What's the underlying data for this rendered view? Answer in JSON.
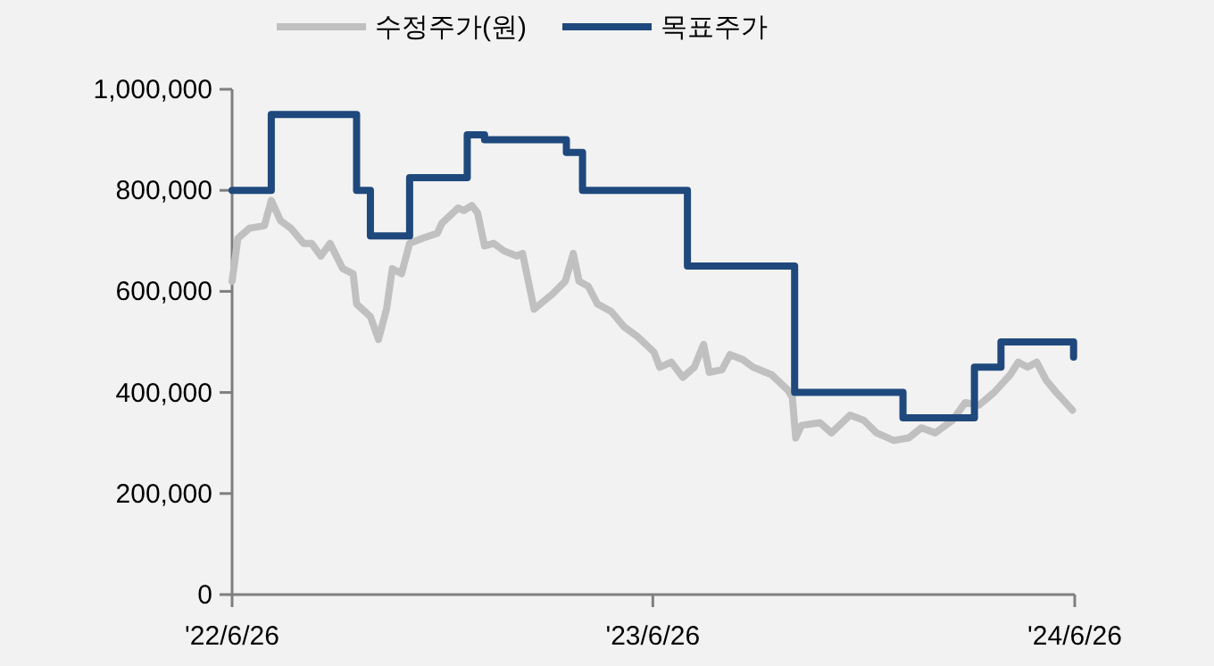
{
  "chart_data": {
    "type": "line",
    "legend": "top",
    "grid": false,
    "xlim": [
      "2022-06-26",
      "2024-06-26"
    ],
    "xticks": [
      {
        "value": "2022-06-26",
        "label": "'22/6/26"
      },
      {
        "value": "2023-06-26",
        "label": "'23/6/26"
      },
      {
        "value": "2024-06-26",
        "label": "'24/6/26"
      }
    ],
    "ylim": [
      0,
      1000000
    ],
    "yticks": [
      0,
      {
        "value": 200000,
        "label": "200,000"
      },
      {
        "value": 400000,
        "label": "400,000"
      },
      {
        "value": 600000,
        "label": "600,000"
      },
      {
        "value": 800000,
        "label": "800,000"
      },
      {
        "value": 1000000,
        "label": "1,000,000"
      }
    ],
    "series": [
      {
        "name": "수정주가(원)",
        "color": "#c0c0c0",
        "x": [
          "2022-06-26",
          "2022-07-01",
          "2022-07-11",
          "2022-07-24",
          "2022-07-30",
          "2022-08-07",
          "2022-08-16",
          "2022-08-27",
          "2022-09-03",
          "2022-09-11",
          "2022-09-19",
          "2022-09-30",
          "2022-10-09",
          "2022-10-12",
          "2022-10-24",
          "2022-10-31",
          "2022-11-07",
          "2022-11-12",
          "2022-11-20",
          "2022-11-27",
          "2022-12-08",
          "2022-12-21",
          "2022-12-25",
          "2023-01-08",
          "2023-01-13",
          "2023-01-20",
          "2023-01-25",
          "2023-01-31",
          "2023-02-08",
          "2023-02-17",
          "2023-02-28",
          "2023-03-05",
          "2023-03-15",
          "2023-03-31",
          "2023-04-11",
          "2023-04-18",
          "2023-04-23",
          "2023-05-01",
          "2023-05-09",
          "2023-05-21",
          "2023-06-01",
          "2023-06-13",
          "2023-06-27",
          "2023-07-02",
          "2023-07-12",
          "2023-07-22",
          "2023-08-01",
          "2023-08-09",
          "2023-08-14",
          "2023-08-25",
          "2023-09-01",
          "2023-09-12",
          "2023-09-21",
          "2023-10-07",
          "2023-10-21",
          "2023-10-25",
          "2023-10-28",
          "2023-11-02",
          "2023-11-18",
          "2023-11-28",
          "2023-12-14",
          "2023-12-26",
          "2024-01-06",
          "2024-01-21",
          "2024-02-03",
          "2024-02-14",
          "2024-02-26",
          "2024-03-12",
          "2024-03-23",
          "2024-04-04",
          "2024-04-17",
          "2024-05-01",
          "2024-05-08",
          "2024-05-16",
          "2024-05-24",
          "2024-06-01",
          "2024-06-10",
          "2024-06-24"
        ],
        "values": [
          620000,
          705000,
          725000,
          730000,
          780000,
          740000,
          725000,
          695000,
          695000,
          670000,
          695000,
          645000,
          635000,
          575000,
          550000,
          505000,
          565000,
          645000,
          635000,
          695000,
          705000,
          715000,
          735000,
          765000,
          760000,
          770000,
          755000,
          690000,
          695000,
          680000,
          670000,
          675000,
          565000,
          595000,
          620000,
          675000,
          620000,
          610000,
          575000,
          560000,
          530000,
          510000,
          480000,
          450000,
          460000,
          430000,
          450000,
          495000,
          440000,
          445000,
          475000,
          465000,
          450000,
          435000,
          405000,
          390000,
          310000,
          335000,
          340000,
          320000,
          355000,
          345000,
          320000,
          305000,
          310000,
          330000,
          320000,
          345000,
          380000,
          375000,
          400000,
          435000,
          460000,
          450000,
          460000,
          425000,
          400000,
          365000
        ]
      },
      {
        "name": "목표주가",
        "type": "step",
        "color": "#1f497d",
        "x": [
          "2022-06-26",
          "2022-07-30",
          "2022-10-12",
          "2022-10-24",
          "2022-11-27",
          "2023-01-16",
          "2023-01-31",
          "2023-04-12",
          "2023-04-26",
          "2023-07-26",
          "2023-10-27",
          "2024-01-29",
          "2024-03-31",
          "2024-04-23",
          "2024-06-25"
        ],
        "values": [
          800000,
          950000,
          800000,
          710000,
          825000,
          910000,
          900000,
          875000,
          800000,
          650000,
          400000,
          350000,
          450000,
          500000,
          470000
        ]
      }
    ]
  }
}
